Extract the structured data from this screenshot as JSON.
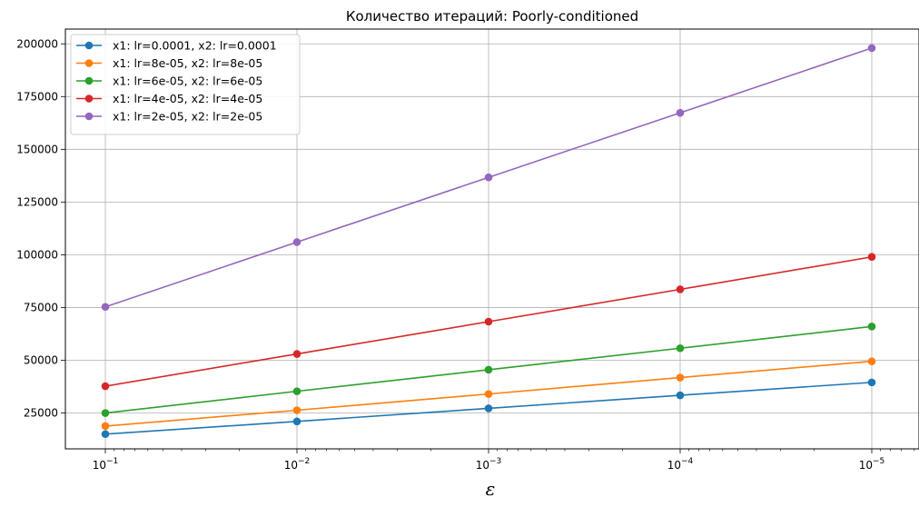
{
  "chart_data": {
    "type": "line",
    "title": "Количество итераций: Poorly-conditioned",
    "xlabel": "ε",
    "ylabel": "",
    "x_scale": "log",
    "x_reversed": true,
    "x": [
      0.1,
      0.01,
      0.001,
      0.0001,
      1e-05
    ],
    "x_tick_base": "10",
    "x_tick_exponents": [
      "−1",
      "−2",
      "−3",
      "−4",
      "−5"
    ],
    "y_ticks": [
      25000,
      50000,
      75000,
      100000,
      125000,
      150000,
      175000,
      200000
    ],
    "y_tick_labels": [
      "25000",
      "50000",
      "75000",
      "100000",
      "125000",
      "150000",
      "175000",
      "200000"
    ],
    "ylim": [
      8000,
      207000
    ],
    "grid": true,
    "legend_position": "top-left",
    "series": [
      {
        "name": "x1: lr=0.0001, x2: lr=0.0001",
        "color": "#1f77b4",
        "values": [
          15000,
          21000,
          27200,
          33400,
          39500
        ]
      },
      {
        "name": "x1: lr=8e-05, x2: lr=8e-05",
        "color": "#ff7f0e",
        "values": [
          18800,
          26300,
          34000,
          41800,
          49500
        ]
      },
      {
        "name": "x1: lr=6e-05, x2: lr=6e-05",
        "color": "#2ca02c",
        "values": [
          25000,
          35300,
          45500,
          55700,
          66000
        ]
      },
      {
        "name": "x1: lr=4e-05, x2: lr=4e-05",
        "color": "#d62728",
        "values": [
          37700,
          53000,
          68300,
          83600,
          99000
        ]
      },
      {
        "name": "x1: lr=2e-05, x2: lr=2e-05",
        "color": "#9467bd",
        "values": [
          75300,
          106000,
          136700,
          167300,
          198000
        ]
      }
    ]
  }
}
